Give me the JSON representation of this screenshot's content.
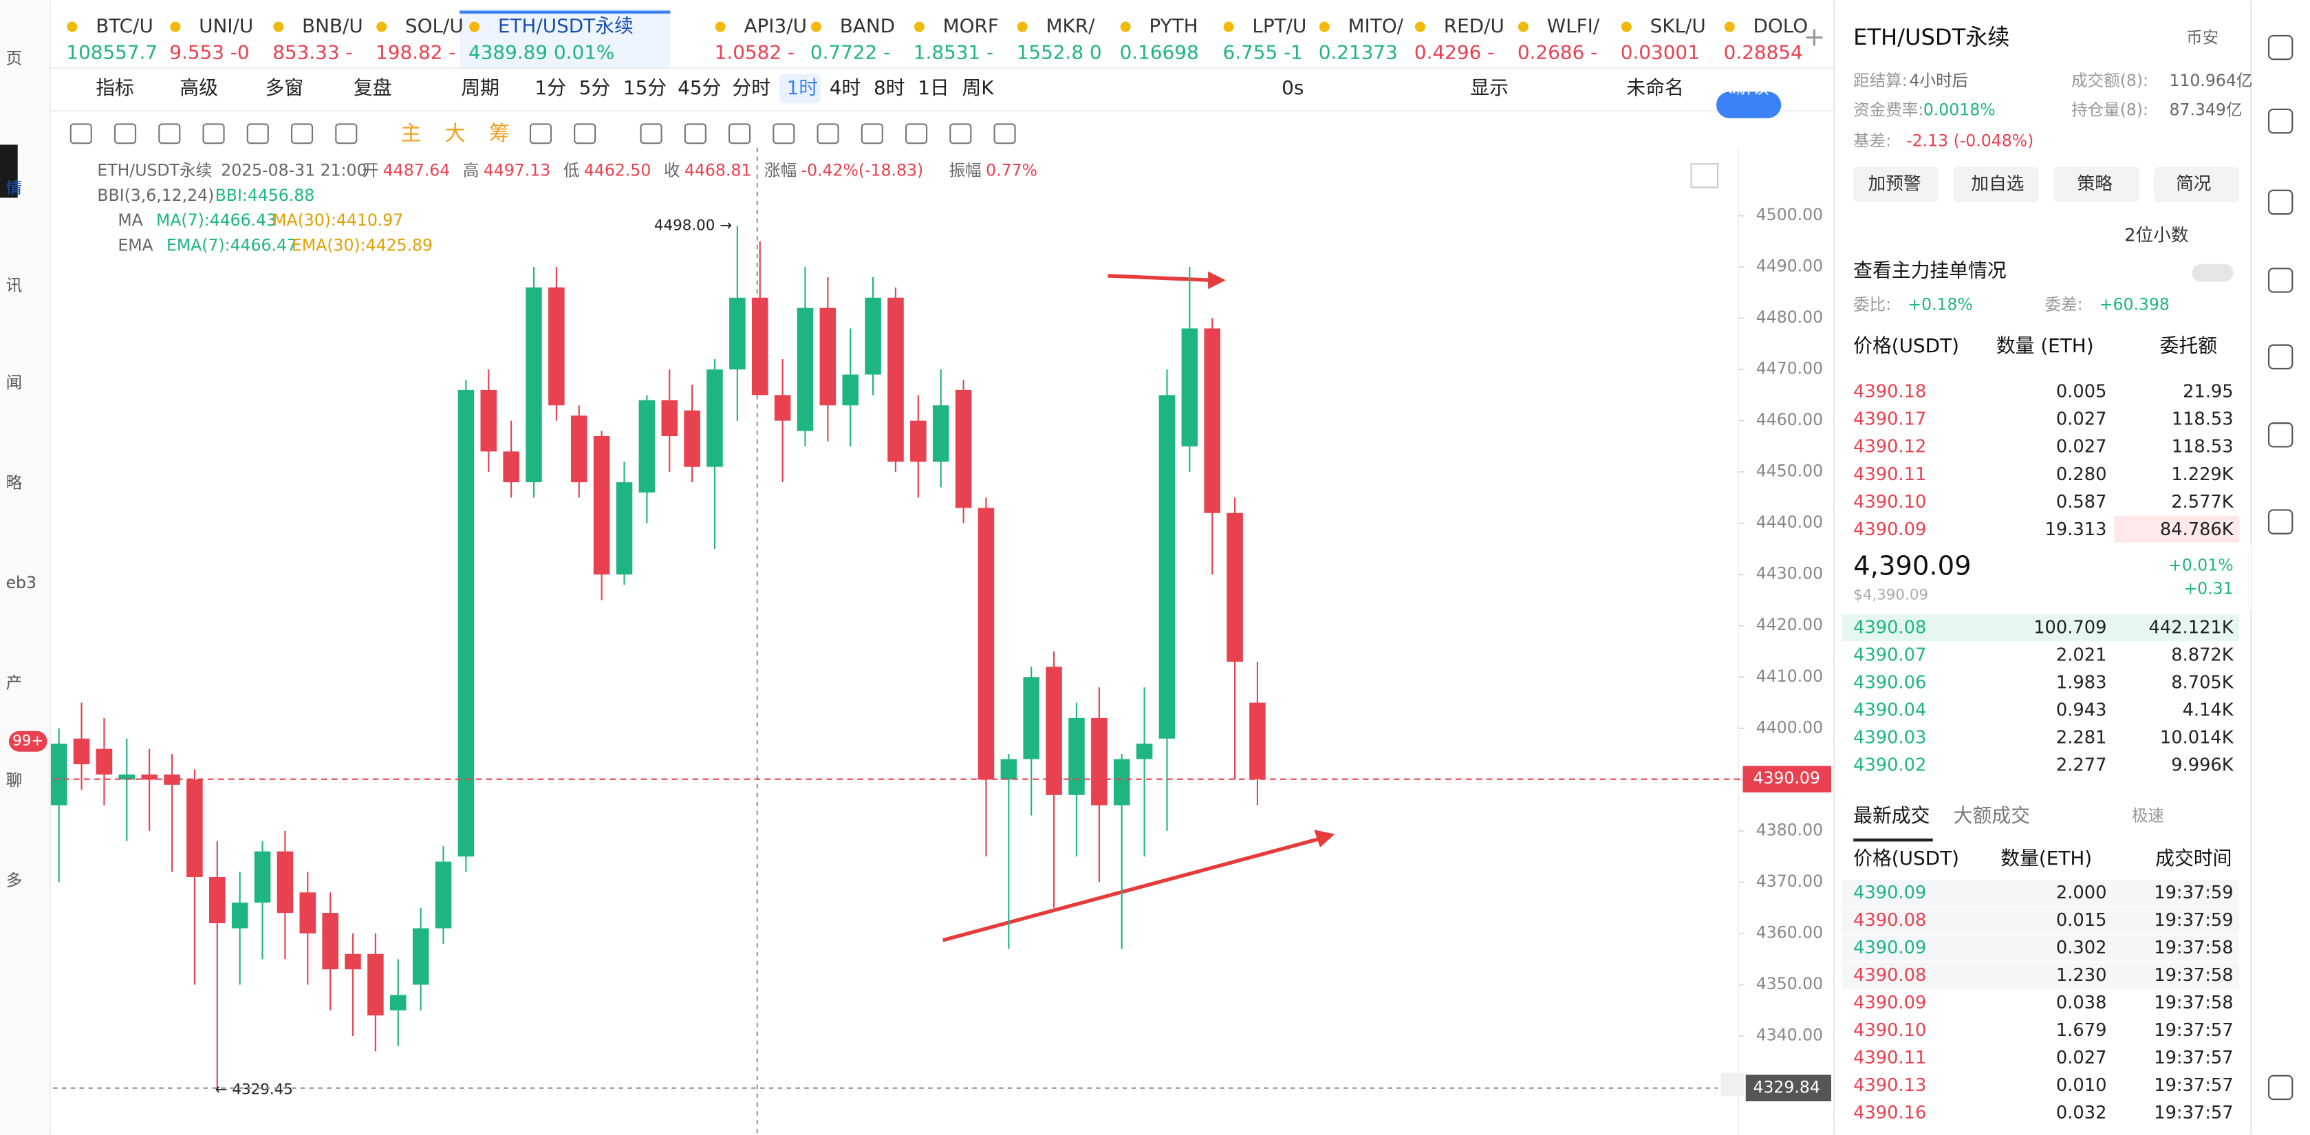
{
  "tabs": [
    {
      "name": "BTC/U",
      "price": "108557.7",
      "up": true
    },
    {
      "name": "UNI/U",
      "price": "9.553 -0",
      "up": false
    },
    {
      "name": "BNB/U",
      "price": "853.33 -",
      "up": false
    },
    {
      "name": "SOL/U",
      "price": "198.82 -",
      "up": false
    },
    {
      "name": "ETH/USDT永续",
      "price": "4389.89 0.01%",
      "up": true
    },
    {
      "name": "API3/U",
      "price": "1.0582 -",
      "up": false
    },
    {
      "name": "BAND",
      "price": "0.7722 -",
      "up": true
    },
    {
      "name": "MORF",
      "price": "1.8531 -",
      "up": true
    },
    {
      "name": "MKR/",
      "price": "1552.8 0",
      "up": true
    },
    {
      "name": "PYTH",
      "price": "0.16698",
      "up": true
    },
    {
      "name": "LPT/U",
      "price": "6.755 -1",
      "up": true
    },
    {
      "name": "MITO/",
      "price": "0.21373",
      "up": true
    },
    {
      "name": "RED/U",
      "price": "0.4296 -",
      "up": false
    },
    {
      "name": "WLFI/",
      "price": "0.2686 -",
      "up": false
    },
    {
      "name": "SKL/U",
      "price": "0.03001",
      "up": false
    },
    {
      "name": "DOLO",
      "price": "0.28854",
      "up": false
    }
  ],
  "toolbar": {
    "left": [
      "指标",
      "高级",
      "多窗",
      "复盘",
      "周期"
    ],
    "periods": [
      "1分",
      "5分",
      "15分",
      "45分",
      "分时",
      "1时",
      "4时",
      "8时",
      "1日",
      "周K"
    ],
    "active_period": "1时",
    "right": [
      "0s",
      "显示",
      "未命名",
      "AI解读"
    ],
    "overlays": [
      "主",
      "大",
      "筹"
    ]
  },
  "sidebar": [
    "页",
    "情",
    "讯",
    "闻",
    "略",
    "eb3",
    "产",
    "聊",
    "多"
  ],
  "sidebar_badge": "99+",
  "info": {
    "symbol": "ETH/USDT永续",
    "time": "2025-08-31 21:00",
    "ohlc": [
      [
        "开",
        "4487.64"
      ],
      [
        "高",
        "4497.13"
      ],
      [
        "低",
        "4462.50"
      ],
      [
        "收",
        "4468.81"
      ],
      [
        "涨幅",
        "-0.42%(-18.83)"
      ],
      [
        "振幅",
        "0.77%"
      ]
    ],
    "bbi": [
      "BBI(3,6,12,24)",
      "BBI:4456.88"
    ],
    "ma": [
      "MA",
      "MA(7):4466.43",
      "MA(30):4410.97"
    ],
    "ema": [
      "EMA",
      "EMA(7):4466.47",
      "EMA(30):4425.89"
    ]
  },
  "chart": {
    "type": "candlestick",
    "ylim": [
      4320.75,
      4513.26
    ],
    "yticks": [
      {
        "value": 4340,
        "label": "4340.00"
      },
      {
        "value": 4350,
        "label": "4350.00"
      },
      {
        "value": 4360,
        "label": "4360.00"
      },
      {
        "value": 4370,
        "label": "4370.00"
      },
      {
        "value": 4380,
        "label": "4380.00"
      },
      {
        "value": 4390,
        "label": "4390.00"
      },
      {
        "value": 4400,
        "label": "4400.00"
      },
      {
        "value": 4410,
        "label": "4410.00"
      },
      {
        "value": 4420,
        "label": "4420.00"
      },
      {
        "value": 4430,
        "label": "4430.00"
      },
      {
        "value": 4440,
        "label": "4440.00"
      },
      {
        "value": 4450,
        "label": "4450.00"
      },
      {
        "value": 4460,
        "label": "4460.00"
      },
      {
        "value": 4470,
        "label": "4470.00"
      },
      {
        "value": 4480,
        "label": "4480.00"
      },
      {
        "value": 4490,
        "label": "4490.00"
      },
      {
        "value": 4500,
        "label": "4500.00"
      }
    ],
    "candles": [
      [
        4385,
        4400,
        4370,
        4397
      ],
      [
        4398,
        4405,
        4388,
        4393
      ],
      [
        4396,
        4402,
        4385,
        4391
      ],
      [
        4390,
        4398,
        4378,
        4391
      ],
      [
        4391,
        4396,
        4380,
        4390
      ],
      [
        4391,
        4395,
        4372,
        4389
      ],
      [
        4390,
        4392,
        4350,
        4371
      ],
      [
        4371,
        4378,
        4329.45,
        4362
      ],
      [
        4361,
        4372,
        4350,
        4366
      ],
      [
        4366,
        4378,
        4355,
        4376
      ],
      [
        4376,
        4380,
        4355,
        4364
      ],
      [
        4368,
        4372,
        4350,
        4360
      ],
      [
        4364,
        4368,
        4345,
        4353
      ],
      [
        4356,
        4360,
        4340,
        4353
      ],
      [
        4356,
        4360,
        4337,
        4344
      ],
      [
        4345,
        4355,
        4338,
        4348
      ],
      [
        4350,
        4365,
        4345,
        4361
      ],
      [
        4361,
        4377,
        4358,
        4374
      ],
      [
        4375,
        4468,
        4372,
        4466
      ],
      [
        4466,
        4470,
        4450,
        4454
      ],
      [
        4454,
        4460,
        4445,
        4448
      ],
      [
        4448,
        4490,
        4445,
        4486
      ],
      [
        4486,
        4490,
        4460,
        4463
      ],
      [
        4461,
        4463,
        4445,
        4448
      ],
      [
        4457,
        4458,
        4425,
        4430
      ],
      [
        4430,
        4452,
        4428,
        4448
      ],
      [
        4446,
        4465,
        4440,
        4464
      ],
      [
        4464,
        4470,
        4450,
        4457
      ],
      [
        4462,
        4467,
        4448,
        4451
      ],
      [
        4451,
        4472,
        4435,
        4470
      ],
      [
        4470,
        4498,
        4460,
        4484
      ],
      [
        4484,
        4495,
        4465,
        4465
      ],
      [
        4465,
        4472,
        4448,
        4460
      ],
      [
        4458,
        4490,
        4455,
        4482
      ],
      [
        4482,
        4488,
        4456,
        4463
      ],
      [
        4463,
        4478,
        4455,
        4469
      ],
      [
        4469,
        4488,
        4465,
        4484
      ],
      [
        4484,
        4486,
        4450,
        4452
      ],
      [
        4460,
        4465,
        4445,
        4452
      ],
      [
        4452,
        4470,
        4447,
        4463
      ],
      [
        4466,
        4468,
        4440,
        4443
      ],
      [
        4443,
        4445,
        4375,
        4390
      ],
      [
        4390,
        4395,
        4357,
        4394
      ],
      [
        4394,
        4412,
        4383,
        4410
      ],
      [
        4412,
        4415,
        4365,
        4387
      ],
      [
        4387,
        4405,
        4375,
        4402
      ],
      [
        4402,
        4408,
        4370,
        4385
      ],
      [
        4385,
        4395,
        4357,
        4394
      ],
      [
        4394,
        4408,
        4375,
        4397
      ],
      [
        4398,
        4470,
        4380,
        4465
      ],
      [
        4455,
        4490,
        4450,
        4478
      ],
      [
        4478,
        4480,
        4430,
        4442
      ],
      [
        4442,
        4445,
        4390,
        4413
      ],
      [
        4405,
        4413,
        4385,
        4390.09
      ]
    ],
    "high_marker": {
      "value": 4498,
      "label": "4498.00 →"
    },
    "low_marker": {
      "value": 4329.45,
      "label": "← 4329.45"
    },
    "last_price": {
      "value": 4390.09,
      "label": "4390.09"
    },
    "crosshair_price": {
      "value": 4329.84,
      "label": "4329.84"
    }
  },
  "panel": {
    "title": "ETH/USDT永续",
    "exchange": "币安",
    "stats": [
      [
        "距结算:",
        "4小时后"
      ],
      [
        "成交额(8):",
        "110.964亿"
      ],
      [
        "资金费率:",
        "0.0018%"
      ],
      [
        "持仓量(8):",
        "87.349亿"
      ],
      [
        "基差:",
        "-2.13 (-0.048%)"
      ]
    ],
    "buttons": [
      "加预警",
      "加自选",
      "策略",
      "简况"
    ],
    "decimals": "2位小数",
    "main_orders": "查看主力挂单情况",
    "ratio": [
      "委比:",
      "+0.18%"
    ],
    "diff": [
      "委差:",
      "+60.398"
    ],
    "book_headers": [
      "价格(USDT)",
      "数量 (ETH)",
      "委托额"
    ],
    "asks": [
      [
        "4390.18",
        "0.005",
        "21.95"
      ],
      [
        "4390.17",
        "0.027",
        "118.53"
      ],
      [
        "4390.12",
        "0.027",
        "118.53"
      ],
      [
        "4390.11",
        "0.280",
        "1.229K"
      ],
      [
        "4390.10",
        "0.587",
        "2.577K"
      ],
      [
        "4390.09",
        "19.313",
        "84.786K"
      ]
    ],
    "mid": {
      "price": "4,390.09",
      "usd": "$4,390.09",
      "pct": "+0.01%",
      "chg": "+0.31"
    },
    "bids": [
      [
        "4390.08",
        "100.709",
        "442.121K"
      ],
      [
        "4390.07",
        "2.021",
        "8.872K"
      ],
      [
        "4390.06",
        "1.983",
        "8.705K"
      ],
      [
        "4390.04",
        "0.943",
        "4.14K"
      ],
      [
        "4390.03",
        "2.281",
        "10.014K"
      ],
      [
        "4390.02",
        "2.277",
        "9.996K"
      ]
    ],
    "trade_tabs": [
      "最新成交",
      "大额成交",
      "极速"
    ],
    "trade_headers": [
      "价格(USDT)",
      "数量(ETH)",
      "成交时间"
    ],
    "trades": [
      [
        "4390.09",
        "2.000",
        "19:37:59",
        true
      ],
      [
        "4390.08",
        "0.015",
        "19:37:59",
        false
      ],
      [
        "4390.09",
        "0.302",
        "19:37:58",
        true
      ],
      [
        "4390.08",
        "1.230",
        "19:37:58",
        false
      ],
      [
        "4390.09",
        "0.038",
        "19:37:58",
        false
      ],
      [
        "4390.10",
        "1.679",
        "19:37:57",
        false
      ],
      [
        "4390.11",
        "0.027",
        "19:37:57",
        false
      ],
      [
        "4390.13",
        "0.010",
        "19:37:57",
        false
      ],
      [
        "4390.16",
        "0.032",
        "19:37:57",
        false
      ]
    ]
  }
}
